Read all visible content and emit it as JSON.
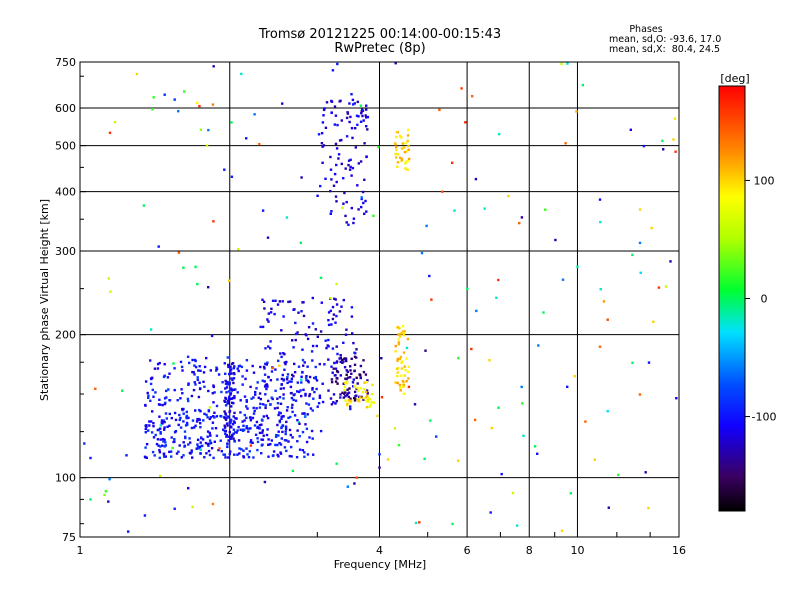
{
  "chart_data": {
    "type": "scatter",
    "title": "Tromsø 20121225 00:14:00-00:15:43",
    "subtitle": "RwPretec (8p)",
    "stats": {
      "heading": "Phases",
      "line1": "mean, sd,O: -93.6, 17.0",
      "line2": "mean, sd,X:  80.4, 24.5"
    },
    "xlabel": "Frequency [MHz]",
    "ylabel": "Stationary phase Virtual Height [km]",
    "xscale": "log",
    "yscale": "log",
    "xlim": [
      1,
      16
    ],
    "ylim": [
      75,
      750
    ],
    "xticks": [
      1,
      2,
      4,
      6,
      8,
      10,
      16
    ],
    "xtick_labels": [
      "1",
      "2",
      "4",
      "6",
      "8",
      "10",
      "16"
    ],
    "x_gridlines": [
      1,
      2,
      4,
      6,
      8,
      10,
      16
    ],
    "yticks": [
      75,
      100,
      200,
      300,
      400,
      500,
      600,
      750
    ],
    "ytick_labels": [
      "75",
      "100",
      "200",
      "300",
      "400",
      "500",
      "600",
      "750"
    ],
    "y_gridlines": [
      100,
      200,
      300,
      400,
      500,
      600
    ],
    "colorbar": {
      "label": "[deg]",
      "range": [
        -180,
        180
      ],
      "ticks": [
        100,
        0,
        -100
      ],
      "tick_labels": [
        "100",
        "0",
        "-100"
      ]
    },
    "clusters": [
      {
        "name": "O-mode E/F1 trace",
        "x_range": [
          1.35,
          3.0
        ],
        "y_range": [
          110,
          180
        ],
        "phase": -100,
        "count": 420
      },
      {
        "name": "O-mode lower trace",
        "x_range": [
          1.35,
          2.6
        ],
        "y_range": [
          110,
          135
        ],
        "phase": -100,
        "count": 150
      },
      {
        "name": "O-mode column near 2 MHz",
        "x_range": [
          1.95,
          2.05
        ],
        "y_range": [
          120,
          175
        ],
        "phase": -110,
        "count": 80
      },
      {
        "name": "O-mode rising cusps",
        "x_range": [
          2.3,
          3.6
        ],
        "y_range": [
          140,
          240
        ],
        "phase": -115,
        "count": 160
      },
      {
        "name": "O-mode F2 cusp",
        "x_range": [
          3.0,
          3.8
        ],
        "y_range": [
          340,
          630
        ],
        "phase": -115,
        "count": 110
      },
      {
        "name": "Purple trace",
        "x_range": [
          3.2,
          3.8
        ],
        "y_range": [
          145,
          180
        ],
        "phase": -140,
        "count": 70
      },
      {
        "name": "X-mode trace",
        "x_range": [
          3.4,
          3.9
        ],
        "y_range": [
          140,
          160
        ],
        "phase": 90,
        "count": 40
      },
      {
        "name": "X-mode lower column",
        "x_range": [
          4.3,
          4.6
        ],
        "y_range": [
          150,
          210
        ],
        "phase": 100,
        "count": 50
      },
      {
        "name": "X-mode upper column",
        "x_range": [
          4.3,
          4.6
        ],
        "y_range": [
          440,
          540
        ],
        "phase": 100,
        "count": 35
      },
      {
        "name": "Noise",
        "x_range": [
          1.0,
          16.0
        ],
        "y_range": [
          75,
          750
        ],
        "phase": "mixed",
        "count": 160
      }
    ],
    "points": [
      {
        "x": 1.62,
        "y": 650,
        "phase": 20
      },
      {
        "x": 1.72,
        "y": 615,
        "phase": 90
      },
      {
        "x": 1.75,
        "y": 540,
        "phase": 40
      },
      {
        "x": 1.8,
        "y": 500,
        "phase": 60
      },
      {
        "x": 1.85,
        "y": 610,
        "phase": 130
      },
      {
        "x": 1.95,
        "y": 445,
        "phase": -100
      },
      {
        "x": 2.02,
        "y": 430,
        "phase": -95
      },
      {
        "x": 1.48,
        "y": 640,
        "phase": -90
      },
      {
        "x": 1.55,
        "y": 625,
        "phase": -85
      },
      {
        "x": 2.55,
        "y": 613,
        "phase": -120
      },
      {
        "x": 5.35,
        "y": 400,
        "phase": 150
      },
      {
        "x": 5.6,
        "y": 460,
        "phase": 160
      },
      {
        "x": 5.85,
        "y": 660,
        "phase": 155
      },
      {
        "x": 5.95,
        "y": 560,
        "phase": 165
      },
      {
        "x": 9.95,
        "y": 590,
        "phase": 110
      },
      {
        "x": 12.8,
        "y": 540,
        "phase": -110
      },
      {
        "x": 11.1,
        "y": 385,
        "phase": -105
      },
      {
        "x": 15.7,
        "y": 570,
        "phase": 95
      },
      {
        "x": 15.6,
        "y": 515,
        "phase": 100
      },
      {
        "x": 10.0,
        "y": 278,
        "phase": -10
      },
      {
        "x": 11.3,
        "y": 235,
        "phase": 120
      },
      {
        "x": 11.5,
        "y": 215,
        "phase": 150
      },
      {
        "x": 13.4,
        "y": 270,
        "phase": -30
      },
      {
        "x": 11.5,
        "y": 138,
        "phase": -30
      },
      {
        "x": 15.8,
        "y": 147,
        "phase": -110
      },
      {
        "x": 5.2,
        "y": 122,
        "phase": -80
      },
      {
        "x": 4.95,
        "y": 185,
        "phase": -140
      },
      {
        "x": 4.0,
        "y": 105,
        "phase": -140
      },
      {
        "x": 4.0,
        "y": 112,
        "phase": -90
      },
      {
        "x": 3.6,
        "y": 100,
        "phase": 150
      },
      {
        "x": 1.05,
        "y": 90,
        "phase": -5
      },
      {
        "x": 1.12,
        "y": 92,
        "phase": 40
      },
      {
        "x": 1.25,
        "y": 77,
        "phase": -100
      },
      {
        "x": 1.55,
        "y": 86,
        "phase": -95
      },
      {
        "x": 1.65,
        "y": 95,
        "phase": -110
      },
      {
        "x": 1.85,
        "y": 88,
        "phase": 130
      },
      {
        "x": 1.02,
        "y": 118,
        "phase": -90
      },
      {
        "x": 1.05,
        "y": 110,
        "phase": -100
      }
    ]
  }
}
